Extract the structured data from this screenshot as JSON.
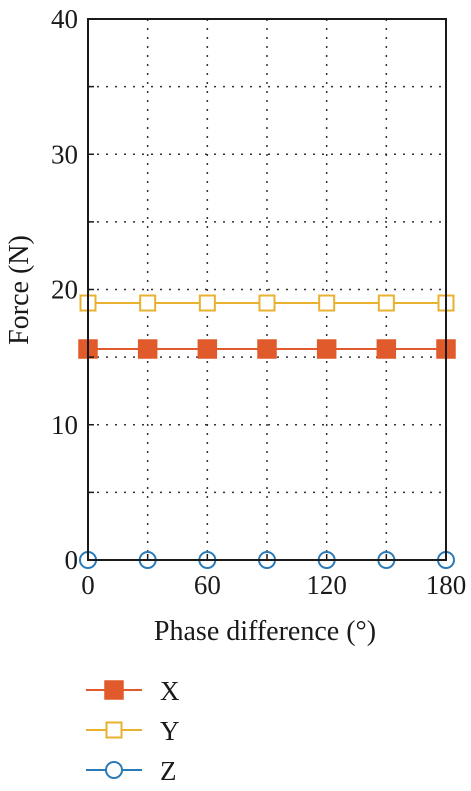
{
  "chart_data": {
    "type": "line",
    "xlabel": "Phase difference (°)",
    "ylabel": "Force (N)",
    "xlim": [
      0,
      180
    ],
    "ylim": [
      0,
      40
    ],
    "x_ticks": [
      0,
      60,
      120,
      180
    ],
    "y_ticks": [
      0,
      10,
      20,
      30,
      40
    ],
    "x_grid": [
      30,
      60,
      90,
      120,
      150
    ],
    "y_grid": [
      5,
      10,
      15,
      20,
      25,
      30,
      35
    ],
    "grid": true,
    "legend_position": "below",
    "x": [
      0,
      30,
      60,
      90,
      120,
      150,
      180
    ],
    "series": [
      {
        "name": "X",
        "values": [
          15.6,
          15.6,
          15.6,
          15.6,
          15.6,
          15.6,
          15.6
        ],
        "color": "#e05a2b",
        "marker": "filled-square"
      },
      {
        "name": "Y",
        "values": [
          19.0,
          19.0,
          19.0,
          19.0,
          19.0,
          19.0,
          19.0
        ],
        "color": "#e8b130",
        "marker": "open-square"
      },
      {
        "name": "Z",
        "values": [
          0,
          0,
          0,
          0,
          0,
          0,
          0
        ],
        "color": "#2a7ab8",
        "marker": "open-circle"
      }
    ]
  }
}
